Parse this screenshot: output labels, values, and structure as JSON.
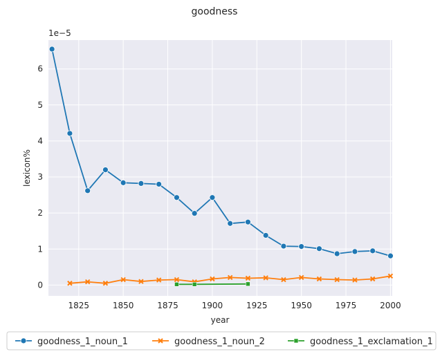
{
  "chart_data": {
    "type": "line",
    "title": "goodness",
    "xlabel": "year",
    "ylabel": "lexicon%",
    "y_offset_label": "1e−5",
    "xlim": [
      1808,
      2001
    ],
    "ylim": [
      -0.3,
      6.8
    ],
    "x_ticks": [
      1825,
      1850,
      1875,
      1900,
      1925,
      1950,
      1975,
      2000
    ],
    "y_ticks": [
      0,
      1,
      2,
      3,
      4,
      5,
      6
    ],
    "grid": true,
    "legend_position": "bottom",
    "background": "#eaeaf2",
    "series": [
      {
        "name": "goodness_1_noun_1",
        "color": "#1f77b4",
        "marker": "circle",
        "x": [
          1810,
          1820,
          1830,
          1840,
          1850,
          1860,
          1870,
          1880,
          1890,
          1900,
          1910,
          1920,
          1930,
          1940,
          1950,
          1960,
          1970,
          1980,
          1990,
          2000
        ],
        "y": [
          6.55,
          4.21,
          2.62,
          3.2,
          2.84,
          2.82,
          2.8,
          2.43,
          1.99,
          2.43,
          1.71,
          1.75,
          1.38,
          1.08,
          1.07,
          1.01,
          0.87,
          0.93,
          0.95,
          0.81
        ]
      },
      {
        "name": "goodness_1_noun_2",
        "color": "#ff7f0e",
        "marker": "x",
        "x": [
          1820,
          1830,
          1840,
          1850,
          1860,
          1870,
          1880,
          1890,
          1900,
          1910,
          1920,
          1930,
          1940,
          1950,
          1960,
          1970,
          1980,
          1990,
          2000
        ],
        "y": [
          0.05,
          0.09,
          0.05,
          0.15,
          0.1,
          0.14,
          0.15,
          0.09,
          0.17,
          0.21,
          0.19,
          0.2,
          0.15,
          0.21,
          0.17,
          0.15,
          0.14,
          0.17,
          0.25
        ]
      },
      {
        "name": "goodness_1_exclamation_1",
        "color": "#2ca02c",
        "marker": "square",
        "x": [
          1880,
          1890,
          1920
        ],
        "y": [
          0.02,
          0.02,
          0.03
        ]
      }
    ]
  }
}
